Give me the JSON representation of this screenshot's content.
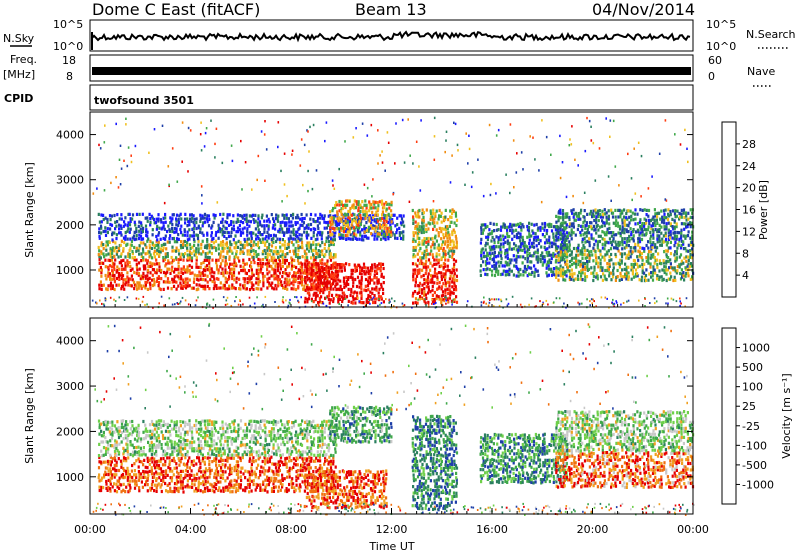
{
  "header": {
    "station": "Dome C East (fitACF)",
    "beam": "Beam 13",
    "date": "04/Nov/2014"
  },
  "strips": {
    "nsky_label": "N.Sky",
    "nsky_ticks": [
      "10^5",
      "10^0"
    ],
    "nsearch_label": "N.Search",
    "nsearch_ticks": [
      "10^5",
      "10^0"
    ],
    "freq_label": "Freq.",
    "freq_unit": "[MHz]",
    "freq_ticks": [
      "18",
      "8"
    ],
    "nave_label": "Nave",
    "nave_ticks": [
      "60",
      "0"
    ],
    "cpid_label": "CPID",
    "cpid_value": "twofsound 3501"
  },
  "chart_data": [
    {
      "type": "heatmap",
      "name": "power",
      "ylabel": "Slant Range [km]",
      "yticks": [
        1000,
        2000,
        3000,
        4000
      ],
      "ylim": [
        180,
        4500
      ],
      "xlim": [
        0,
        24
      ],
      "xticks": [
        "00:00",
        "04:00",
        "08:00",
        "12:00",
        "16:00",
        "20:00",
        "00:00"
      ],
      "colorbar": {
        "label": "Power [dB]",
        "ticks": [
          "28",
          "24",
          "20",
          "16",
          "12",
          "8",
          "4"
        ],
        "colors": [
          "#1a1aff",
          "#1e3fa8",
          "#2a7f5f",
          "#3fa84a",
          "#f0c020",
          "#f08c10",
          "#ff3c10",
          "#e60000"
        ]
      },
      "bands": [
        {
          "t0": 0.3,
          "t1": 9.8,
          "r0": 600,
          "r1": 1300,
          "level": 0.85
        },
        {
          "t0": 0.3,
          "t1": 9.8,
          "r0": 1300,
          "r1": 1700,
          "level": 0.5
        },
        {
          "t0": 0.3,
          "t1": 12.5,
          "r0": 1700,
          "r1": 2300,
          "level": 0.12
        },
        {
          "t0": 8.5,
          "t1": 11.7,
          "r0": 300,
          "r1": 1200,
          "level": 0.98
        },
        {
          "t0": 9.5,
          "t1": 12.0,
          "r0": 1800,
          "r1": 2600,
          "level": 0.6
        },
        {
          "t0": 12.8,
          "t1": 14.6,
          "r0": 300,
          "r1": 1300,
          "level": 0.9
        },
        {
          "t0": 12.8,
          "t1": 14.6,
          "r0": 1300,
          "r1": 2400,
          "level": 0.55
        },
        {
          "t0": 15.5,
          "t1": 19.0,
          "r0": 900,
          "r1": 2100,
          "level": 0.25
        },
        {
          "t0": 18.5,
          "t1": 24.0,
          "r0": 800,
          "r1": 1500,
          "level": 0.45
        },
        {
          "t0": 18.5,
          "t1": 24.0,
          "r0": 1500,
          "r1": 2400,
          "level": 0.3
        }
      ]
    },
    {
      "type": "heatmap",
      "name": "velocity",
      "ylabel": "Slant Range [km]",
      "yticks": [
        1000,
        2000,
        3000,
        4000
      ],
      "ylim": [
        180,
        4500
      ],
      "xlim": [
        0,
        24
      ],
      "xticks": [
        "00:00",
        "04:00",
        "08:00",
        "12:00",
        "16:00",
        "20:00",
        "00:00"
      ],
      "xlabel": "Time UT",
      "colorbar": {
        "label": "Velocity [m s⁻¹]",
        "ticks": [
          "1000",
          "500",
          "100",
          "25",
          "-25",
          "-100",
          "-500",
          "-1000"
        ],
        "colors": [
          "#1e3fa8",
          "#2a7f5f",
          "#3fa84a",
          "#6fd04a",
          "#c8c8c8",
          "#f0a020",
          "#f07010",
          "#e60000"
        ]
      },
      "bands": [
        {
          "t0": 0.3,
          "t1": 9.8,
          "r0": 700,
          "r1": 1500,
          "level": 0.85
        },
        {
          "t0": 0.3,
          "t1": 9.8,
          "r0": 1500,
          "r1": 2300,
          "level": 0.45
        },
        {
          "t0": 8.5,
          "t1": 11.8,
          "r0": 350,
          "r1": 1200,
          "level": 0.85
        },
        {
          "t0": 9.5,
          "t1": 12.0,
          "r0": 1800,
          "r1": 2600,
          "level": 0.3
        },
        {
          "t0": 12.8,
          "t1": 14.6,
          "r0": 300,
          "r1": 2400,
          "level": 0.2
        },
        {
          "t0": 15.5,
          "t1": 19.0,
          "r0": 900,
          "r1": 2000,
          "level": 0.25
        },
        {
          "t0": 18.5,
          "t1": 24.0,
          "r0": 800,
          "r1": 1600,
          "level": 0.8
        },
        {
          "t0": 18.5,
          "t1": 24.0,
          "r0": 1600,
          "r1": 2500,
          "level": 0.45
        }
      ]
    }
  ]
}
